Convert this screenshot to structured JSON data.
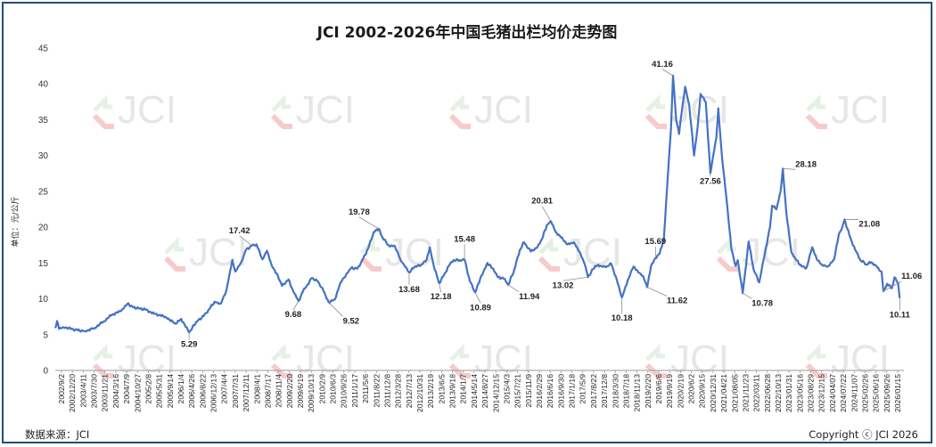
{
  "chart_data": {
    "type": "line",
    "title": "JCI 2002-2026年中国毛猪出栏均价走势图",
    "ylabel": "单位：元/公斤",
    "ylim": [
      0,
      45
    ],
    "yticks": [
      0,
      5,
      10,
      15,
      20,
      25,
      30,
      35,
      40,
      45
    ],
    "grid": false,
    "xlim": [
      "2002-09-02",
      "2026-03-15"
    ],
    "xtick_labels": [
      "2002/9/2",
      "2002/12/20",
      "2003/4/11",
      "2003/7/30",
      "2003/11/21",
      "2004/3/16",
      "2004/7/9",
      "2004/10/27",
      "2005/2/8",
      "2005/5/31",
      "2005/9/14",
      "2006/1/4",
      "2006/4/26",
      "2006/8/22",
      "2006/12/13",
      "2007/4/4",
      "2007/7/31",
      "2007/12/11",
      "2008/4/1",
      "2008/7/17",
      "2008/11/4",
      "2009/2/20",
      "2009/6/19",
      "2009/10/13",
      "2010/2/9",
      "2010/6/3",
      "2010/9/26",
      "2011/1/17",
      "2011/5/6",
      "2011/8/22",
      "2011/12/8",
      "2012/3/28",
      "2012/7/13",
      "2012/10/31",
      "2013/2/19",
      "2013/6/5",
      "2013/9/18",
      "2014/1/7",
      "2014/5/14",
      "2014/8/27",
      "2014/12/15",
      "2015/4/3",
      "2015/7/21",
      "2015/11/9",
      "2016/2/29",
      "2016/6/16",
      "2016/9/30",
      "2017/1/18",
      "2017/5/9",
      "2017/8/22",
      "2017/12/8",
      "2018/3/30",
      "2018/7/18",
      "2018/11/13",
      "2019/2/20",
      "2019/6/6",
      "2019/9/19",
      "2020/2/19",
      "2020/6/2",
      "2020/9/15",
      "2020/12/31",
      "2021/04/21",
      "2021/08/05",
      "2021/11/23",
      "2022/03/11",
      "2022/06/28",
      "2022/10/13",
      "2023/01/31",
      "2023/05/16",
      "2023/08/29",
      "2023/12/15",
      "2024/04/07",
      "2024/07/22",
      "2024/11/07",
      "2025/02/26",
      "2025/06/16",
      "2025/09/26",
      "2026/01/15"
    ],
    "series": [
      {
        "name": "",
        "color": "#4472c4",
        "points": [
          [
            "2002-09-02",
            5.9
          ],
          [
            "2002-09-20",
            6.9
          ],
          [
            "2002-10-10",
            5.8
          ],
          [
            "2002-11-15",
            6.0
          ],
          [
            "2003-01-15",
            5.9
          ],
          [
            "2003-04-15",
            5.6
          ],
          [
            "2003-07-01",
            5.5
          ],
          [
            "2003-10-01",
            5.9
          ],
          [
            "2004-01-01",
            6.8
          ],
          [
            "2004-04-01",
            7.8
          ],
          [
            "2004-07-01",
            8.3
          ],
          [
            "2004-09-01",
            9.3
          ],
          [
            "2004-11-01",
            8.8
          ],
          [
            "2005-03-01",
            8.5
          ],
          [
            "2005-06-01",
            7.9
          ],
          [
            "2005-09-01",
            7.6
          ],
          [
            "2005-11-01",
            7.1
          ],
          [
            "2006-01-04",
            6.5
          ],
          [
            "2006-03-01",
            7.2
          ],
          [
            "2006-05-20",
            5.29
          ],
          [
            "2006-08-01",
            6.8
          ],
          [
            "2006-10-15",
            7.6
          ],
          [
            "2006-12-13",
            8.6
          ],
          [
            "2007-02-01",
            9.6
          ],
          [
            "2007-04-04",
            9.3
          ],
          [
            "2007-06-01",
            11.2
          ],
          [
            "2007-07-31",
            15.4
          ],
          [
            "2007-09-01",
            13.8
          ],
          [
            "2007-11-01",
            15.2
          ],
          [
            "2007-12-15",
            16.8
          ],
          [
            "2008-02-15",
            17.42
          ],
          [
            "2008-04-01",
            17.6
          ],
          [
            "2008-06-01",
            15.5
          ],
          [
            "2008-07-17",
            16.7
          ],
          [
            "2008-09-01",
            14.7
          ],
          [
            "2008-11-04",
            13.2
          ],
          [
            "2008-12-15",
            11.8
          ],
          [
            "2009-02-20",
            12.7
          ],
          [
            "2009-04-01",
            11.3
          ],
          [
            "2009-06-01",
            9.68
          ],
          [
            "2009-07-15",
            11.0
          ],
          [
            "2009-09-01",
            12.0
          ],
          [
            "2009-10-13",
            12.9
          ],
          [
            "2009-12-15",
            12.4
          ],
          [
            "2010-02-09",
            11.1
          ],
          [
            "2010-04-01",
            9.52
          ],
          [
            "2010-06-03",
            9.9
          ],
          [
            "2010-08-01",
            12.3
          ],
          [
            "2010-09-26",
            13.4
          ],
          [
            "2010-11-15",
            14.3
          ],
          [
            "2011-01-17",
            14.2
          ],
          [
            "2011-03-15",
            15.5
          ],
          [
            "2011-05-06",
            17.0
          ],
          [
            "2011-07-01",
            19.3
          ],
          [
            "2011-08-22",
            19.78
          ],
          [
            "2011-10-01",
            18.5
          ],
          [
            "2011-12-08",
            17.3
          ],
          [
            "2012-02-01",
            17.4
          ],
          [
            "2012-03-28",
            15.5
          ],
          [
            "2012-05-15",
            14.5
          ],
          [
            "2012-06-25",
            13.68
          ],
          [
            "2012-08-15",
            14.4
          ],
          [
            "2012-10-31",
            14.8
          ],
          [
            "2012-12-20",
            15.5
          ],
          [
            "2013-01-20",
            17.2
          ],
          [
            "2013-03-01",
            14.6
          ],
          [
            "2013-04-25",
            12.18
          ],
          [
            "2013-06-05",
            13.1
          ],
          [
            "2013-08-01",
            14.6
          ],
          [
            "2013-09-18",
            15.4
          ],
          [
            "2013-11-20",
            15.4
          ],
          [
            "2014-01-07",
            15.48
          ],
          [
            "2014-03-01",
            12.5
          ],
          [
            "2014-04-25",
            10.89
          ],
          [
            "2014-06-15",
            12.8
          ],
          [
            "2014-08-27",
            15.0
          ],
          [
            "2014-10-15",
            14.3
          ],
          [
            "2014-12-15",
            13.0
          ],
          [
            "2015-02-15",
            12.8
          ],
          [
            "2015-03-25",
            11.94
          ],
          [
            "2015-05-25",
            14.0
          ],
          [
            "2015-07-21",
            16.8
          ],
          [
            "2015-09-01",
            17.9
          ],
          [
            "2015-11-09",
            16.6
          ],
          [
            "2016-01-15",
            17.2
          ],
          [
            "2016-02-29",
            18.3
          ],
          [
            "2016-04-20",
            20.3
          ],
          [
            "2016-06-01",
            20.81
          ],
          [
            "2016-07-15",
            19.4
          ],
          [
            "2016-09-30",
            18.3
          ],
          [
            "2016-11-15",
            17.6
          ],
          [
            "2017-01-18",
            17.9
          ],
          [
            "2017-03-15",
            16.6
          ],
          [
            "2017-05-09",
            14.8
          ],
          [
            "2017-06-10",
            13.02
          ],
          [
            "2017-08-22",
            14.6
          ],
          [
            "2017-10-15",
            14.6
          ],
          [
            "2017-12-08",
            14.4
          ],
          [
            "2018-02-01",
            14.9
          ],
          [
            "2018-03-30",
            12.6
          ],
          [
            "2018-05-20",
            10.18
          ],
          [
            "2018-07-18",
            12.6
          ],
          [
            "2018-09-15",
            14.5
          ],
          [
            "2018-11-13",
            13.6
          ],
          [
            "2018-12-20",
            13.2
          ],
          [
            "2019-01-31",
            11.62
          ],
          [
            "2019-03-10",
            14.5
          ],
          [
            "2019-04-25",
            15.69
          ],
          [
            "2019-06-06",
            16.3
          ],
          [
            "2019-07-20",
            18.5
          ],
          [
            "2019-09-01",
            28.0
          ],
          [
            "2019-09-30",
            34.0
          ],
          [
            "2019-10-20",
            41.16
          ],
          [
            "2019-11-20",
            35.0
          ],
          [
            "2019-12-20",
            33.0
          ],
          [
            "2020-01-15",
            36.0
          ],
          [
            "2020-02-19",
            39.6
          ],
          [
            "2020-04-01",
            37.0
          ],
          [
            "2020-05-20",
            30.0
          ],
          [
            "2020-06-25",
            34.0
          ],
          [
            "2020-07-25",
            38.6
          ],
          [
            "2020-09-15",
            37.5
          ],
          [
            "2020-11-01",
            27.56
          ],
          [
            "2020-12-31",
            32.5
          ],
          [
            "2021-01-20",
            36.6
          ],
          [
            "2021-02-25",
            30.0
          ],
          [
            "2021-04-21",
            23.0
          ],
          [
            "2021-06-01",
            17.0
          ],
          [
            "2021-07-15",
            14.6
          ],
          [
            "2021-08-05",
            15.4
          ],
          [
            "2021-09-25",
            10.78
          ],
          [
            "2021-11-23",
            18.0
          ],
          [
            "2022-01-15",
            14.0
          ],
          [
            "2022-03-11",
            12.3
          ],
          [
            "2022-04-25",
            15.5
          ],
          [
            "2022-06-28",
            20.0
          ],
          [
            "2022-07-20",
            23.0
          ],
          [
            "2022-09-01",
            22.5
          ],
          [
            "2022-10-13",
            25.0
          ],
          [
            "2022-11-05",
            28.18
          ],
          [
            "2022-12-10",
            22.0
          ],
          [
            "2023-01-31",
            16.5
          ],
          [
            "2023-03-15",
            15.5
          ],
          [
            "2023-05-16",
            14.5
          ],
          [
            "2023-07-01",
            14.3
          ],
          [
            "2023-08-29",
            17.2
          ],
          [
            "2023-10-15",
            15.5
          ],
          [
            "2023-12-15",
            14.6
          ],
          [
            "2024-02-01",
            14.5
          ],
          [
            "2024-04-07",
            15.5
          ],
          [
            "2024-05-25",
            19.0
          ],
          [
            "2024-06-25",
            19.8
          ],
          [
            "2024-07-22",
            21.08
          ],
          [
            "2024-09-10",
            18.8
          ],
          [
            "2024-11-07",
            16.8
          ],
          [
            "2024-12-25",
            15.5
          ],
          [
            "2025-02-26",
            14.8
          ],
          [
            "2025-04-20",
            15.1
          ],
          [
            "2025-06-16",
            14.4
          ],
          [
            "2025-08-01",
            13.8
          ],
          [
            "2025-08-20",
            11.06
          ],
          [
            "2025-09-26",
            12.1
          ],
          [
            "2025-11-15",
            11.5
          ],
          [
            "2025-12-10",
            13.0
          ],
          [
            "2026-01-15",
            12.2
          ],
          [
            "2026-02-01",
            10.11
          ]
        ]
      }
    ],
    "annotations": [
      {
        "label": "5.29",
        "x": "2006-05-20",
        "y": 5.29
      },
      {
        "label": "17.42",
        "x": "2008-02-15",
        "y": 17.42
      },
      {
        "label": "9.68",
        "x": "2009-06-01",
        "y": 9.68
      },
      {
        "label": "9.52",
        "x": "2010-04-01",
        "y": 9.52
      },
      {
        "label": "19.78",
        "x": "2011-08-22",
        "y": 19.78
      },
      {
        "label": "13.68",
        "x": "2012-06-25",
        "y": 13.68
      },
      {
        "label": "12.18",
        "x": "2013-04-25",
        "y": 12.18
      },
      {
        "label": "15.48",
        "x": "2014-01-07",
        "y": 15.48
      },
      {
        "label": "10.89",
        "x": "2014-04-25",
        "y": 10.89
      },
      {
        "label": "11.94",
        "x": "2015-03-25",
        "y": 11.94
      },
      {
        "label": "20.81",
        "x": "2016-06-01",
        "y": 20.81
      },
      {
        "label": "13.02",
        "x": "2017-06-10",
        "y": 13.02
      },
      {
        "label": "10.18",
        "x": "2018-05-20",
        "y": 10.18
      },
      {
        "label": "15.69",
        "x": "2019-04-25",
        "y": 15.69
      },
      {
        "label": "11.62",
        "x": "2019-01-31",
        "y": 11.62
      },
      {
        "label": "41.16",
        "x": "2019-10-20",
        "y": 41.16
      },
      {
        "label": "27.56",
        "x": "2020-11-01",
        "y": 27.56
      },
      {
        "label": "10.78",
        "x": "2021-09-25",
        "y": 10.78
      },
      {
        "label": "28.18",
        "x": "2022-11-05",
        "y": 28.18
      },
      {
        "label": "21.08",
        "x": "2024-07-22",
        "y": 21.08
      },
      {
        "label": "11.06",
        "x": "2025-08-20",
        "y": 11.06
      },
      {
        "label": "10.11",
        "x": "2026-02-01",
        "y": 10.11
      }
    ]
  },
  "footer": {
    "source": "数据来源：JCI",
    "copyright": "Copyright ⓒ JCI 2026"
  },
  "watermark": {
    "text": "JCI",
    "colors": [
      "#f0a0a0",
      "#cfe5cf"
    ]
  }
}
